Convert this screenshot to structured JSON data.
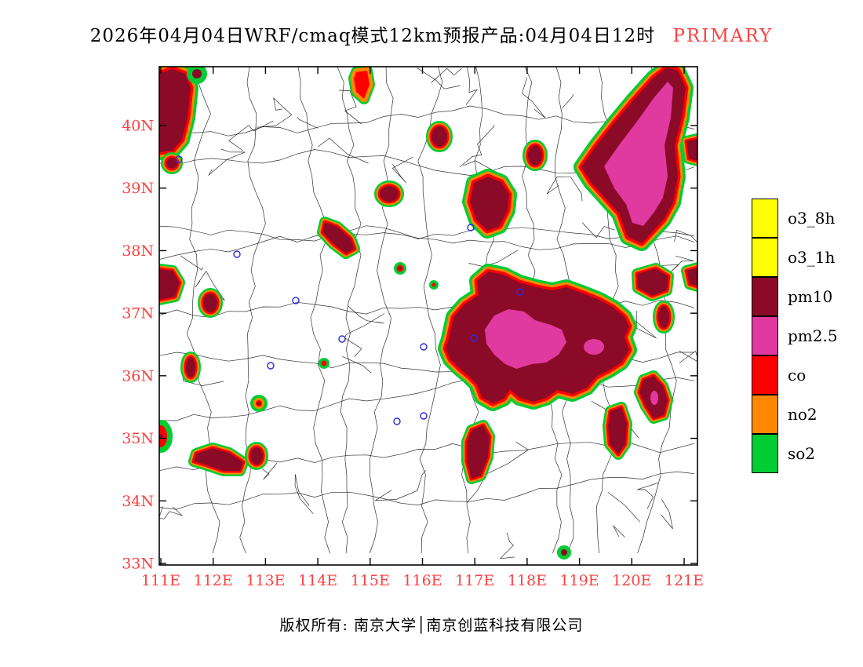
{
  "title": {
    "text": "2026年04月04日WRF/cmaq模式12km预报产品:04月04日12时",
    "highlight": "PRIMARY",
    "highlight_color": "#FF4040"
  },
  "map": {
    "axis_color": "#FF4040",
    "x_ticks": [
      "111E",
      "112E",
      "113E",
      "114E",
      "115E",
      "116E",
      "117E",
      "118E",
      "119E",
      "120E",
      "121E"
    ],
    "y_ticks": [
      "40N",
      "39N",
      "38N",
      "37N",
      "36N",
      "35N",
      "34N",
      "33N"
    ]
  },
  "legend": {
    "items": [
      {
        "label": "o3_8h",
        "color": "#FFFF00"
      },
      {
        "label": "o3_1h",
        "color": "#FFFF00"
      },
      {
        "label": "pm10",
        "color": "#8B0A28"
      },
      {
        "label": "pm2.5",
        "color": "#E0399F"
      },
      {
        "label": "co",
        "color": "#FF0000"
      },
      {
        "label": "no2",
        "color": "#FF8800"
      },
      {
        "label": "so2",
        "color": "#00CC33"
      }
    ]
  },
  "footer": {
    "text": "版权所有: 南京大学│南京创蓝科技有限公司"
  }
}
